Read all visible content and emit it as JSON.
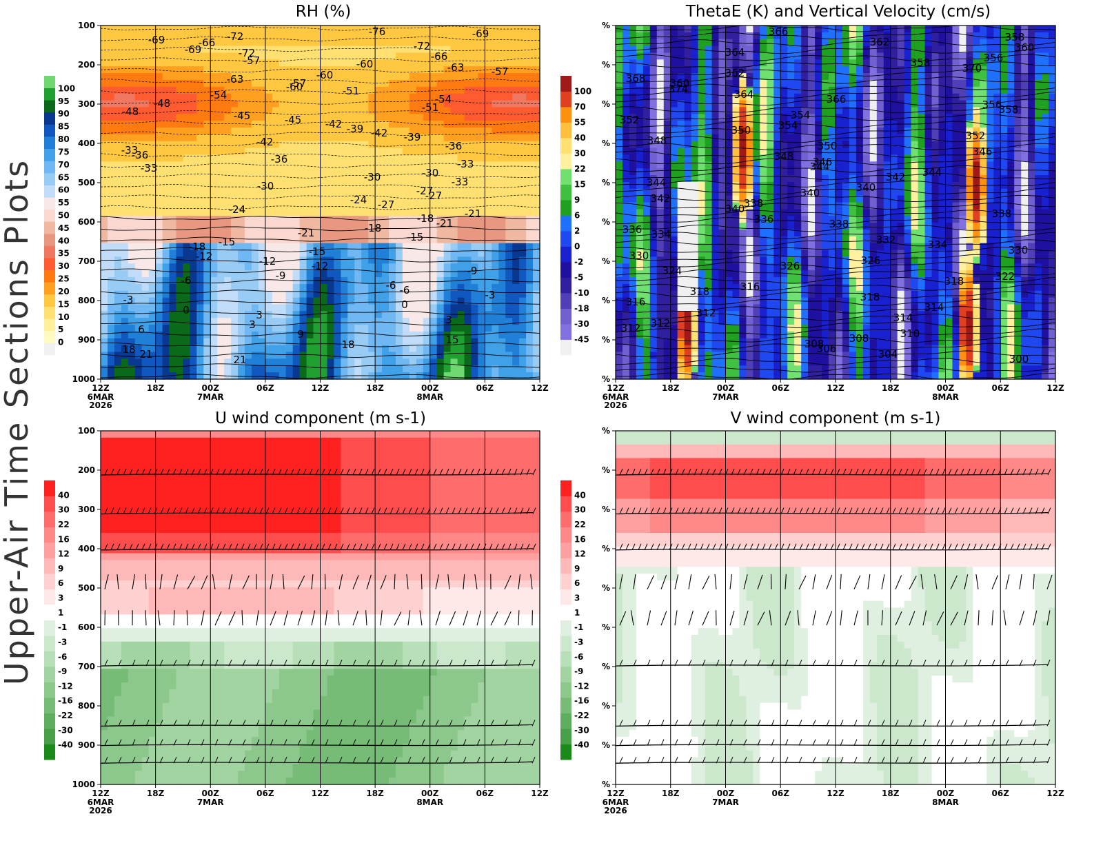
{
  "side_title": "Upper-Air Time Sections Plots",
  "colors": {
    "rh_scale": [
      "#f0f0f0",
      "#fffac0",
      "#fff09a",
      "#ffe070",
      "#ffc840",
      "#ffa020",
      "#ff7a10",
      "#ff5a30",
      "#f07860",
      "#e89880",
      "#f0b8a0",
      "#fad8d0",
      "#f8e8e8",
      "#c0dcf8",
      "#98ccf4",
      "#70b8f4",
      "#40a0e8",
      "#2080d8",
      "#1058c0",
      "#083890",
      "#0a6a1a",
      "#20a030",
      "#70d870"
    ],
    "thetae_scale": [
      "#f0f0f0",
      "#8070e0",
      "#7060d0",
      "#5040b8",
      "#3020a0",
      "#2010a0",
      "#1820d0",
      "#2048f0",
      "#2070ff",
      "#20a020",
      "#40c040",
      "#70e070",
      "#fff0a0",
      "#ffe070",
      "#ffc040",
      "#ff9010",
      "#e04020",
      "#a01818"
    ],
    "wind_scale": [
      "#1a8a1a",
      "#48a048",
      "#5fae5f",
      "#76bc76",
      "#8cc88c",
      "#a2d4a2",
      "#b8e0b8",
      "#cce8cc",
      "#e0f0e0",
      "#ffffff",
      "#ffe8e8",
      "#ffd0d0",
      "#ffb8b8",
      "#ffa0a0",
      "#ff8888",
      "#ff6c6c",
      "#ff4c4c",
      "#ff2020"
    ]
  },
  "panels": [
    {
      "name": "rh",
      "title": "RH (%)",
      "chart_data": {
        "type": "heatmap",
        "title": "RH (%)",
        "x_ticks": [
          "12Z",
          "18Z",
          "00Z",
          "06Z",
          "12Z",
          "18Z",
          "00Z",
          "06Z",
          "12Z"
        ],
        "x_date_labels": [
          {
            "at": 0,
            "lines": [
              "6MAR",
              "2026"
            ]
          },
          {
            "at": 2,
            "lines": [
              "7MAR"
            ]
          },
          {
            "at": 6,
            "lines": [
              "8MAR"
            ]
          }
        ],
        "y_ticks": [
          "100",
          "200",
          "300",
          "400",
          "500",
          "600",
          "700",
          "800",
          "900",
          "1000"
        ],
        "ylim": [
          100,
          1000
        ],
        "colorbar": [
          "0",
          "5",
          "10",
          "15",
          "20",
          "25",
          "30",
          "35",
          "40",
          "45",
          "50",
          "55",
          "60",
          "65",
          "70",
          "75",
          "80",
          "85",
          "90",
          "95",
          "100"
        ],
        "contour_labels": [
          "-76",
          "-69",
          "-72",
          "-69",
          "-66",
          "-72",
          "-69",
          "-72",
          "-66",
          "-57",
          "-60",
          "-63",
          "-57",
          "-60",
          "-63",
          "-57",
          "-60",
          "-51",
          "-54",
          "-54",
          "-48",
          "-51",
          "-48",
          "-45",
          "-45",
          "-42",
          "-39",
          "-42",
          "-39",
          "-42",
          "-36",
          "-33",
          "-36",
          "-36",
          "-33",
          "-33",
          "-30",
          "-30",
          "-33",
          "-30",
          "-27",
          "-27",
          "-24",
          "-27",
          "-24",
          "-21",
          "-18",
          "-21",
          "-18",
          "-21",
          "-15",
          "-15",
          "-18",
          "-15",
          "-12",
          "-12",
          "-12",
          "-9",
          "-9",
          "-6",
          "-6",
          "-6",
          "-3",
          "-3",
          "0",
          "0",
          "3",
          "3",
          "3",
          "6",
          "9",
          "15",
          "18",
          "18",
          "21",
          "21"
        ]
      }
    },
    {
      "name": "thetae",
      "title": "ThetaE (K) and Vertical Velocity (cm/s)",
      "chart_data": {
        "type": "heatmap",
        "title": "ThetaE (K) and Vertical Velocity (cm/s)",
        "x_ticks": [
          "12Z",
          "18Z",
          "00Z",
          "06Z",
          "12Z",
          "18Z",
          "00Z",
          "06Z",
          "12Z"
        ],
        "x_date_labels": [
          {
            "at": 0,
            "lines": [
              "6MAR",
              "2026"
            ]
          },
          {
            "at": 2,
            "lines": [
              "7MAR"
            ]
          },
          {
            "at": 6,
            "lines": [
              "8MAR"
            ]
          }
        ],
        "y_ticks": [
          "%",
          "%",
          "%",
          "%",
          "%",
          "%",
          "%",
          "%",
          "%",
          "%"
        ],
        "colorbar": [
          "-45",
          "-30",
          "-18",
          "-10",
          "-5",
          "-2",
          "0",
          "2",
          "6",
          "9",
          "15",
          "22",
          "30",
          "40",
          "55",
          "70",
          "100"
        ],
        "contour_labels": [
          "366",
          "358",
          "362",
          "360",
          "364",
          "356",
          "358",
          "370",
          "362",
          "368",
          "360",
          "374",
          "364",
          "366",
          "356",
          "358",
          "354",
          "352",
          "354",
          "350",
          "352",
          "348",
          "350",
          "346",
          "348",
          "346",
          "344",
          "344",
          "342",
          "344",
          "340",
          "340",
          "342",
          "338",
          "340",
          "338",
          "336",
          "338",
          "336",
          "334",
          "332",
          "334",
          "330",
          "330",
          "326",
          "326",
          "324",
          "322",
          "318",
          "316",
          "318",
          "318",
          "316",
          "314",
          "312",
          "314",
          "312",
          "312",
          "310",
          "308",
          "308",
          "306",
          "304",
          "300"
        ]
      }
    },
    {
      "name": "u-wind",
      "title": "U wind component (m s-1)",
      "chart_data": {
        "type": "heatmap",
        "title": "U wind component (m s-1)",
        "x_ticks": [
          "12Z",
          "18Z",
          "00Z",
          "06Z",
          "12Z",
          "18Z",
          "00Z",
          "06Z",
          "12Z"
        ],
        "x_date_labels": [
          {
            "at": 0,
            "lines": [
              "6MAR",
              "2026"
            ]
          },
          {
            "at": 2,
            "lines": [
              "7MAR"
            ]
          },
          {
            "at": 6,
            "lines": [
              "8MAR"
            ]
          }
        ],
        "y_ticks": [
          "100",
          "200",
          "300",
          "400",
          "500",
          "600",
          "700",
          "800",
          "900",
          "1000"
        ],
        "ylim": [
          100,
          1000
        ],
        "colorbar": [
          "-40",
          "-30",
          "-22",
          "-16",
          "-12",
          "-9",
          "-6",
          "-3",
          "-1",
          "1",
          "3",
          "6",
          "9",
          "12",
          "16",
          "22",
          "30",
          "40"
        ]
      }
    },
    {
      "name": "v-wind",
      "title": "V wind component (m s-1)",
      "chart_data": {
        "type": "heatmap",
        "title": "V wind component (m s-1)",
        "x_ticks": [
          "12Z",
          "18Z",
          "00Z",
          "06Z",
          "12Z",
          "18Z",
          "00Z",
          "06Z",
          "12Z"
        ],
        "x_date_labels": [
          {
            "at": 0,
            "lines": [
              "6MAR",
              "2026"
            ]
          },
          {
            "at": 2,
            "lines": [
              "7MAR"
            ]
          },
          {
            "at": 6,
            "lines": [
              "8MAR"
            ]
          }
        ],
        "y_ticks": [
          "%",
          "%",
          "%",
          "%",
          "%",
          "%",
          "%",
          "%",
          "%",
          "%"
        ],
        "colorbar": [
          "-40",
          "-30",
          "-22",
          "-16",
          "-12",
          "-9",
          "-6",
          "-3",
          "-1",
          "1",
          "3",
          "6",
          "9",
          "12",
          "16",
          "22",
          "30",
          "40"
        ]
      }
    }
  ]
}
